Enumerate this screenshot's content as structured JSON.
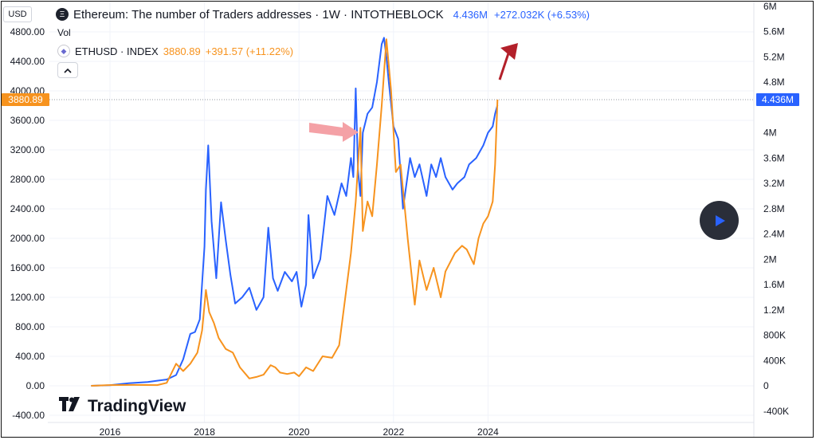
{
  "header": {
    "title": "Ethereum: The number of Traders addresses · 1W · INTOTHEBLOCK",
    "value": "4.436M",
    "change": "+272.032K (+6.53%)"
  },
  "vol_label": "Vol",
  "sub": {
    "symbol": "ETHUSD · INDEX",
    "price": "3880.89",
    "change": "+391.57 (+11.22%)"
  },
  "currency_button": "USD",
  "collapse_button": "^",
  "left_price_tag": "3880.89",
  "right_value_tag": "4.436M",
  "logo_text": "TradingView",
  "colors": {
    "blue": "#2962ff",
    "orange": "#f7931e",
    "arrow_red": "#b3202a",
    "arrow_pink": "#f4a1a6"
  },
  "chart_data": {
    "type": "line",
    "x_tick_labels": [
      "2016",
      "2018",
      "2020",
      "2022",
      "2024"
    ],
    "left_axis": {
      "ticks": [
        "4800.00",
        "4400.00",
        "4000.00",
        "3600.00",
        "3200.00",
        "2800.00",
        "2400.00",
        "2000.00",
        "1600.00",
        "1200.00",
        "800.00",
        "400.00",
        "0.00",
        "-400.00"
      ],
      "range": [
        -400,
        4800
      ]
    },
    "right_axis": {
      "ticks": [
        "6M",
        "5.6M",
        "5.2M",
        "4.8M",
        "4M",
        "3.6M",
        "3.2M",
        "2.8M",
        "2.4M",
        "2M",
        "1.6M",
        "1.2M",
        "800K",
        "400K",
        "0",
        "-400K"
      ]
    },
    "series": [
      {
        "name": "Ethereum: The number of Traders addresses",
        "color": "#2962ff",
        "x": [
          2015.6,
          2016.0,
          2016.4,
          2016.8,
          2017.0,
          2017.2,
          2017.4,
          2017.55,
          2017.7,
          2017.8,
          2017.9,
          2018.0,
          2018.03,
          2018.08,
          2018.15,
          2018.25,
          2018.35,
          2018.45,
          2018.55,
          2018.65,
          2018.8,
          2018.95,
          2019.1,
          2019.25,
          2019.35,
          2019.45,
          2019.55,
          2019.7,
          2019.85,
          2019.95,
          2020.05,
          2020.15,
          2020.2,
          2020.3,
          2020.45,
          2020.6,
          2020.75,
          2020.9,
          2021.0,
          2021.1,
          2021.15,
          2021.2,
          2021.25,
          2021.3,
          2021.35,
          2021.45,
          2021.55,
          2021.65,
          2021.75,
          2021.8,
          2021.85,
          2021.9,
          2022.0,
          2022.1,
          2022.2,
          2022.35,
          2022.45,
          2022.55,
          2022.7,
          2022.8,
          2022.9,
          2023.0,
          2023.1,
          2023.25,
          2023.35,
          2023.5,
          2023.6,
          2023.75,
          2023.9,
          2024.0,
          2024.1,
          2024.15,
          2024.2
        ],
        "values": [
          0,
          10000,
          40000,
          60000,
          80000,
          100000,
          170000,
          420000,
          820000,
          850000,
          1050000,
          2200000,
          3100000,
          3800000,
          2600000,
          1700000,
          2900000,
          2300000,
          1750000,
          1300000,
          1400000,
          1550000,
          1200000,
          1400000,
          2500000,
          1700000,
          1500000,
          1800000,
          1650000,
          1800000,
          1250000,
          1600000,
          2700000,
          1700000,
          2000000,
          3000000,
          2700000,
          3200000,
          3000000,
          3600000,
          3300000,
          4700000,
          3400000,
          3000000,
          4000000,
          4300000,
          4400000,
          4800000,
          5400000,
          5500000,
          5200000,
          4800000,
          4100000,
          3900000,
          2800000,
          3600000,
          3300000,
          3500000,
          3000000,
          3500000,
          3300000,
          3600000,
          3300000,
          3100000,
          3200000,
          3300000,
          3500000,
          3600000,
          3800000,
          4000000,
          4100000,
          4300000,
          4436000
        ]
      },
      {
        "name": "ETHUSD · INDEX",
        "color": "#f7931e",
        "x": [
          2015.6,
          2016.0,
          2016.5,
          2017.0,
          2017.2,
          2017.4,
          2017.55,
          2017.7,
          2017.85,
          2017.95,
          2018.03,
          2018.1,
          2018.2,
          2018.3,
          2018.45,
          2018.6,
          2018.75,
          2018.95,
          2019.1,
          2019.25,
          2019.4,
          2019.5,
          2019.6,
          2019.75,
          2019.9,
          2020.0,
          2020.15,
          2020.3,
          2020.5,
          2020.7,
          2020.85,
          2021.0,
          2021.1,
          2021.2,
          2021.3,
          2021.35,
          2021.45,
          2021.55,
          2021.65,
          2021.75,
          2021.85,
          2021.95,
          2022.05,
          2022.15,
          2022.3,
          2022.45,
          2022.55,
          2022.7,
          2022.85,
          2023.0,
          2023.1,
          2023.3,
          2023.45,
          2023.55,
          2023.7,
          2023.8,
          2023.9,
          2024.0,
          2024.1,
          2024.15,
          2024.2
        ],
        "values": [
          0,
          10,
          12,
          10,
          40,
          300,
          200,
          300,
          450,
          750,
          1300,
          1000,
          850,
          650,
          500,
          450,
          250,
          100,
          120,
          150,
          280,
          250,
          180,
          160,
          180,
          130,
          250,
          200,
          400,
          380,
          550,
          1300,
          1800,
          2500,
          3500,
          2100,
          2500,
          2300,
          3000,
          3800,
          4700,
          4000,
          2900,
          3000,
          2000,
          1100,
          1700,
          1300,
          1600,
          1200,
          1550,
          1800,
          1900,
          1850,
          1650,
          2000,
          2200,
          2300,
          2500,
          3000,
          3880.89
        ]
      }
    ]
  }
}
